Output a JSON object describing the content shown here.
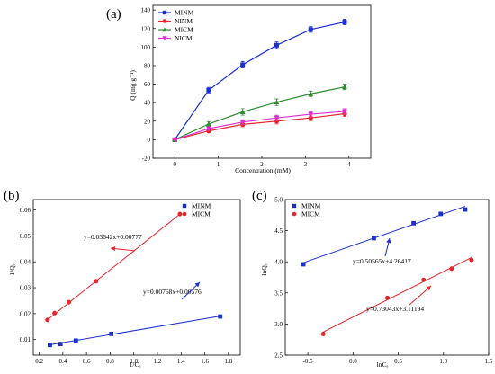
{
  "chart_data": [
    {
      "type": "line",
      "panel_label": "(a)",
      "xlabel": "Concentration (mM)",
      "ylabel": "Q (mg g⁻¹)",
      "xlim": [
        -0.5,
        4.5
      ],
      "ylim": [
        -20,
        145
      ],
      "xticks": [
        0,
        1,
        2,
        3,
        4
      ],
      "yticks": [
        -20,
        0,
        20,
        40,
        60,
        80,
        100,
        120,
        140
      ],
      "grid": false,
      "legend_position": "top-left",
      "series": [
        {
          "name": "MINM",
          "color": "#1a2fcf",
          "marker": "square",
          "x": [
            0,
            0.78,
            1.56,
            2.34,
            3.12,
            3.9
          ],
          "y": [
            0,
            53.5,
            81,
            102,
            119,
            127
          ],
          "err": [
            0,
            3,
            3.5,
            3.5,
            3,
            3
          ]
        },
        {
          "name": "NINM",
          "color": "#e8242b",
          "marker": "circle",
          "x": [
            0,
            0.78,
            1.56,
            2.34,
            3.12,
            3.9
          ],
          "y": [
            0,
            9.5,
            16.5,
            20,
            23.5,
            28
          ],
          "err": [
            0,
            2,
            2.5,
            3,
            3,
            3
          ]
        },
        {
          "name": "MICM",
          "color": "#2e8b2e",
          "marker": "triangle-up",
          "x": [
            0,
            0.78,
            1.56,
            2.34,
            3.12,
            3.9
          ],
          "y": [
            0,
            17,
            30,
            40.5,
            49.5,
            57
          ],
          "err": [
            0,
            2.5,
            3.5,
            3.5,
            3,
            3
          ]
        },
        {
          "name": "NICM",
          "color": "#e02fd0",
          "marker": "triangle-down",
          "x": [
            0,
            0.78,
            1.56,
            2.34,
            3.12,
            3.9
          ],
          "y": [
            0,
            12,
            19,
            23.5,
            27.5,
            30.5
          ],
          "err": [
            0,
            2,
            2.5,
            3,
            3,
            3
          ]
        }
      ]
    },
    {
      "type": "scatter",
      "panel_label": "(b)",
      "xlabel": "1/Cₑ",
      "ylabel": "1/Qₑ",
      "xlim": [
        0.15,
        1.9
      ],
      "ylim": [
        0.004,
        0.064
      ],
      "xticks": [
        0.2,
        0.4,
        0.6,
        0.8,
        1.0,
        1.2,
        1.4,
        1.6,
        1.8
      ],
      "xtick_labels": [
        "0.2",
        "0.4",
        "0.6",
        "0.8",
        "1.0",
        "1.2",
        "1.4",
        "1.6",
        "1.8"
      ],
      "yticks": [
        0.01,
        0.02,
        0.03,
        0.04,
        0.05,
        0.06
      ],
      "ytick_labels": [
        "0.01",
        "0.02",
        "0.03",
        "0.04",
        "0.05",
        "0.06"
      ],
      "grid": false,
      "legend_position": "top-right",
      "series": [
        {
          "name": "MINM",
          "color": "#1a2fcf",
          "marker": "square",
          "x": [
            0.29,
            0.38,
            0.51,
            0.81,
            1.73
          ],
          "y": [
            0.0079,
            0.0083,
            0.0096,
            0.0122,
            0.0189
          ],
          "fit": [
            0.00768,
            0.00576
          ]
        },
        {
          "name": "MICM",
          "color": "#e8242b",
          "marker": "circle",
          "x": [
            0.27,
            0.33,
            0.45,
            0.68,
            1.39
          ],
          "y": [
            0.0176,
            0.0202,
            0.0244,
            0.0325,
            0.0584
          ],
          "fit": [
            0.03642,
            0.00777
          ]
        }
      ],
      "annotations": [
        {
          "text": "y=0.03642x+0.00777",
          "color": "#e8242b"
        },
        {
          "text": "y=0.00768x+0.00576",
          "color": "#1a2fcf"
        }
      ]
    },
    {
      "type": "scatter",
      "panel_label": "(c)",
      "xlabel": "lnCₑ",
      "ylabel": "lnQₑ",
      "xlim": [
        -0.75,
        1.5
      ],
      "ylim": [
        2.5,
        5.0
      ],
      "xticks": [
        -0.5,
        0.0,
        0.5,
        1.0,
        1.5
      ],
      "xtick_labels": [
        "-0.5",
        "0.0",
        "0.5",
        "1.0",
        "1.5"
      ],
      "yticks": [
        2.5,
        3.0,
        3.5,
        4.0,
        4.5,
        5.0
      ],
      "ytick_labels": [
        "2.5",
        "3.0",
        "3.5",
        "4.0",
        "4.5",
        "5.0"
      ],
      "grid": false,
      "legend_position": "top-left",
      "series": [
        {
          "name": "MINM",
          "color": "#1a2fcf",
          "marker": "square",
          "x": [
            -0.55,
            0.23,
            0.67,
            0.97,
            1.24
          ],
          "y": [
            3.96,
            4.38,
            4.62,
            4.77,
            4.84
          ],
          "fit": [
            0.50565,
            4.26417
          ]
        },
        {
          "name": "MICM",
          "color": "#e8242b",
          "marker": "circle",
          "x": [
            -0.33,
            0.38,
            0.78,
            1.09,
            1.31
          ],
          "y": [
            2.84,
            3.42,
            3.71,
            3.89,
            4.03
          ],
          "fit": [
            0.73043,
            3.11194
          ]
        }
      ],
      "annotations": [
        {
          "text": "y=0.50565x+4.26417",
          "color": "#1a2fcf"
        },
        {
          "text": "y=0.73043x+3.11194",
          "color": "#e8242b"
        }
      ]
    }
  ]
}
